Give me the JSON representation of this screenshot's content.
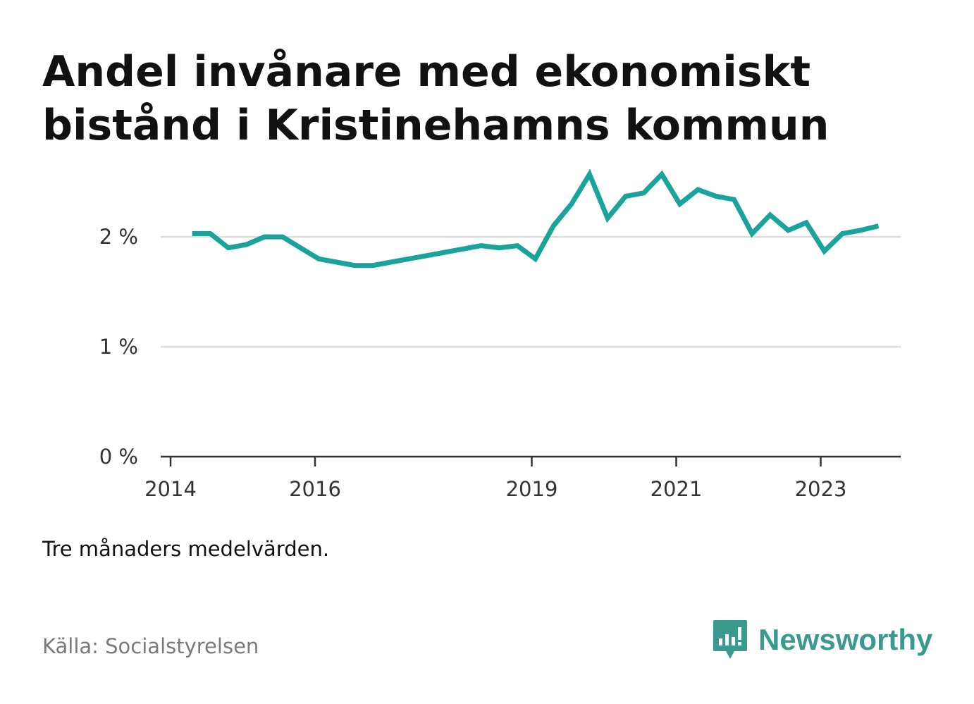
{
  "title": "Andel invånare med ekonomiskt bistånd i Kristinehamns kommun",
  "note": "Tre månaders medelvärden.",
  "source": "Källa: Socialstyrelsen",
  "brand": {
    "name": "Newsworthy",
    "icon": "newsworthy-logo-icon",
    "color": "#3b9a8e"
  },
  "colors": {
    "line": "#1aa39a",
    "grid": "#dddddd",
    "axis": "#333333"
  },
  "chart_data": {
    "type": "line",
    "title": "Andel invånare med ekonomiskt bistånd i Kristinehamns kommun",
    "xlabel": "",
    "ylabel": "",
    "ylim": [
      0,
      2.7
    ],
    "xlim": [
      2014,
      2024.05
    ],
    "grid": true,
    "y_ticks": [
      {
        "value": 0,
        "label": "0 %"
      },
      {
        "value": 1,
        "label": "1 %"
      },
      {
        "value": 2,
        "label": "2 %"
      }
    ],
    "x_ticks": [
      {
        "value": 2014,
        "label": "2014"
      },
      {
        "value": 2016,
        "label": "2016"
      },
      {
        "value": 2019,
        "label": "2019"
      },
      {
        "value": 2021,
        "label": "2021"
      },
      {
        "value": 2023,
        "label": "2023"
      }
    ],
    "series": [
      {
        "x": [
          2014.3,
          2014.55,
          2014.8,
          2015.05,
          2015.3,
          2015.55,
          2015.8,
          2016.05,
          2016.3,
          2016.55,
          2016.8,
          2017.05,
          2017.3,
          2017.55,
          2017.8,
          2018.05,
          2018.3,
          2018.55,
          2018.8,
          2019.05,
          2019.3,
          2019.55,
          2019.8,
          2020.05,
          2020.3,
          2020.55,
          2020.8,
          2021.05,
          2021.3,
          2021.55,
          2021.8,
          2022.05,
          2022.3,
          2022.55,
          2022.8,
          2023.05,
          2023.3,
          2023.55,
          2023.8
        ],
        "y": [
          2.03,
          2.03,
          1.9,
          1.93,
          2.0,
          2.0,
          1.9,
          1.8,
          1.77,
          1.74,
          1.74,
          1.77,
          1.8,
          1.83,
          1.86,
          1.89,
          1.92,
          1.9,
          1.92,
          1.8,
          2.1,
          2.3,
          2.57,
          2.17,
          2.37,
          2.4,
          2.57,
          2.3,
          2.43,
          2.37,
          2.34,
          2.03,
          2.2,
          2.06,
          2.13,
          1.87,
          2.03,
          2.06,
          2.1
        ]
      }
    ]
  }
}
